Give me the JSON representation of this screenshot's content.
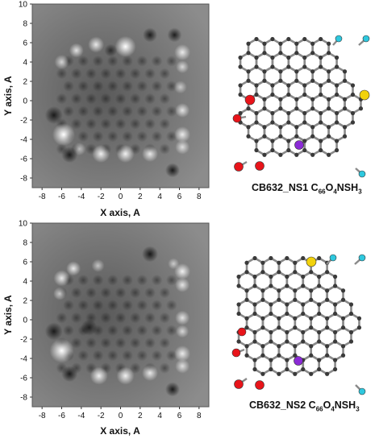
{
  "panels": [
    {
      "xlabel": "X axis, A",
      "ylabel": "Y axis, A",
      "xticks": [
        "-8",
        "-6",
        "-4",
        "-2",
        "0",
        "2",
        "4",
        "6",
        "8"
      ],
      "yticks": [
        "10",
        "8",
        "6",
        "4",
        "2",
        "0",
        "-2",
        "-4",
        "-6",
        "-8"
      ],
      "caption_prefix": "CB632_NS1 C",
      "caption_sub1": "66",
      "caption_mid": "O",
      "caption_sub2": "4",
      "caption_suffix": "NSH",
      "caption_sub3": "3"
    },
    {
      "xlabel": "X axis, A",
      "ylabel": "Y axis, A",
      "xticks": [
        "-8",
        "-6",
        "-4",
        "-2",
        "0",
        "2",
        "4",
        "6",
        "8"
      ],
      "yticks": [
        "10",
        "8",
        "6",
        "4",
        "2",
        "0",
        "-2",
        "-4",
        "-6",
        "-8"
      ],
      "caption_prefix": "CB632_NS2 C",
      "caption_sub1": "66",
      "caption_mid": "O",
      "caption_sub2": "4",
      "caption_suffix": "NSH",
      "caption_sub3": "3"
    }
  ],
  "colors": {
    "oxygen": "#e8141a",
    "sulfur": "#f2d20c",
    "nitrogen": "#8b2bd6",
    "hydrogen": "#2ec8de",
    "carbon": "#3a3a3a",
    "bond": "#8a8a8a"
  }
}
